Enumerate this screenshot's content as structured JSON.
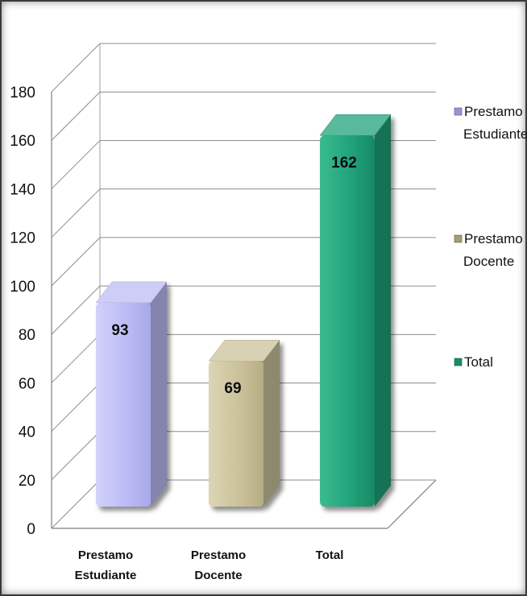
{
  "chart_data": {
    "type": "bar",
    "categories": [
      "Prestamo Estudiante",
      "Prestamo Docente",
      "Total"
    ],
    "category_label_lines": [
      [
        "Prestamo",
        "Estudiante"
      ],
      [
        "Prestamo",
        "Docente"
      ],
      [
        "Total"
      ]
    ],
    "values": [
      93,
      69,
      162
    ],
    "colors": [
      "#bcbcf6",
      "#cbc29b",
      "#22a37a"
    ],
    "ylim": [
      0,
      180
    ],
    "yticks": [
      0,
      20,
      40,
      60,
      80,
      100,
      120,
      140,
      160,
      180
    ],
    "grid": true,
    "legend_placement": "right",
    "legend": [
      {
        "lines": [
          "Prestamo",
          "Estudiante"
        ],
        "color": "#9494d8"
      },
      {
        "lines": [
          "Prestamo",
          "Docente"
        ],
        "color": "#a69d70"
      },
      {
        "lines": [
          "Total"
        ],
        "color": "#1a8d66"
      }
    ],
    "title": "",
    "xlabel": "",
    "ylabel": ""
  }
}
